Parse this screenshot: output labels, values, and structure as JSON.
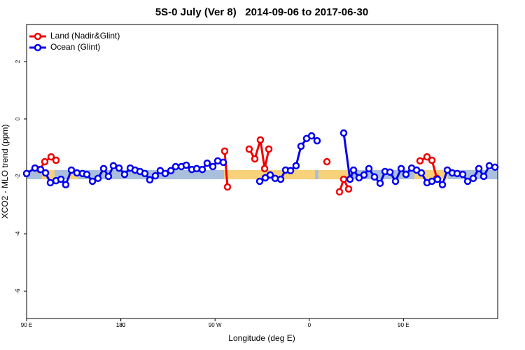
{
  "chart_data": {
    "type": "line",
    "title": "5S-0 July (Ver 8)   2014-09-06 to 2017-06-30",
    "xlabel": "Longitude (deg E)",
    "ylabel": "XCO2 - MLO trend (ppm)",
    "xlim": [
      90,
      540
    ],
    "xticks": [
      {
        "value": 90,
        "label": "90 E"
      },
      180,
      {
        "value": 270,
        "label": "90 W"
      },
      {
        "value": 360,
        "label": "0"
      },
      {
        "value": 450,
        "label": "90 E"
      },
      180.0001
    ],
    "ylim": [
      -6.95,
      3.29
    ],
    "yticks": [
      2,
      0,
      -2,
      -4,
      -6
    ],
    "legend": "top-left",
    "band": {
      "ylim": [
        -2.1,
        -1.78
      ],
      "color": "#a9bfdc",
      "highlight_color": "#f7d27a",
      "highlights": [
        [
          104.7,
          116.7
        ],
        [
          131.5,
          139.5
        ],
        [
          278.6,
          365.5
        ],
        [
          368.8,
          399
        ],
        [
          460.5,
          492.6
        ]
      ]
    },
    "series": [
      {
        "name": "Land (Nadir&Glint)",
        "color": "#ee0000",
        "x": [
          102.7,
          107.4,
          113.4,
          118.1,
          null,
          279.2,
          281.9,
          null,
          302.6,
          308.0,
          313.3,
          317.4,
          321.4,
          null,
          376.9,
          null,
          388.9,
          392.9,
          397.6,
          null,
          465.8,
          472.5,
          477.2,
          481.9
        ],
        "values": [
          -1.76,
          -1.49,
          -1.32,
          -1.44,
          null,
          -1.12,
          -2.37,
          null,
          -1.05,
          -1.39,
          -0.73,
          -1.73,
          -1.05,
          null,
          -1.49,
          null,
          -2.54,
          -2.1,
          -2.44,
          null,
          -1.46,
          -1.32,
          -1.44,
          -2.07
        ]
      },
      {
        "name": "Ocean (Glint)",
        "color": "#0000ee",
        "x": [
          90.0,
          98.0,
          103.4,
          108.1,
          112.7,
          118.1,
          122.8,
          127.4,
          132.8,
          138.1,
          143.5,
          147.5,
          152.9,
          158.2,
          163.6,
          168.2,
          172.9,
          178.3,
          183.6,
          189.0,
          193.6,
          198.3,
          203.0,
          207.7,
          213.0,
          217.7,
          222.4,
          227.8,
          232.4,
          237.8,
          242.5,
          247.8,
          252.5,
          257.8,
          262.5,
          267.9,
          272.6,
          277.9,
          null,
          312.7,
          318.0,
          322.7,
          327.4,
          332.7,
          337.4,
          342.1,
          347.4,
          352.1,
          357.5,
          362.2,
          367.5,
          null,
          392.9,
          398.9,
          402.3,
          407.6,
          412.3,
          417.0,
          422.3,
          427.7,
          432.4,
          437.1,
          442.4,
          447.8,
          452.4,
          457.8,
          462.5,
          467.1,
          472.5,
          477.2,
          482.5,
          487.2,
          491.9,
          496.6,
          501.3,
          506.6,
          511.3,
          516.6,
          522.0,
          526.7,
          532.0,
          537.4
        ],
        "values": [
          -1.9,
          -1.71,
          -1.76,
          -1.88,
          -2.22,
          -2.15,
          -2.1,
          -2.29,
          -1.78,
          -1.88,
          -1.9,
          -1.93,
          -2.17,
          -2.07,
          -1.73,
          -2.0,
          -1.63,
          -1.71,
          -1.93,
          -1.71,
          -1.78,
          -1.83,
          -1.9,
          -2.12,
          -1.98,
          -1.8,
          -1.9,
          -1.8,
          -1.66,
          -1.66,
          -1.61,
          -1.76,
          -1.73,
          -1.76,
          -1.54,
          -1.66,
          -1.46,
          -1.51,
          null,
          -2.17,
          -2.05,
          -1.95,
          -2.07,
          -2.1,
          -1.78,
          -1.8,
          -1.63,
          -0.95,
          -0.68,
          -0.59,
          -0.76,
          null,
          -0.49,
          -2.1,
          -1.78,
          -2.05,
          -1.95,
          -1.73,
          -2.02,
          -2.24,
          -1.83,
          -1.85,
          -2.17,
          -1.73,
          -1.93,
          -1.71,
          -1.78,
          -1.88,
          -2.22,
          -2.17,
          -2.1,
          -2.29,
          -1.78,
          -1.88,
          -1.9,
          -1.93,
          -2.17,
          -2.07,
          -1.73,
          -2.0,
          -1.63,
          -1.68
        ]
      }
    ]
  }
}
